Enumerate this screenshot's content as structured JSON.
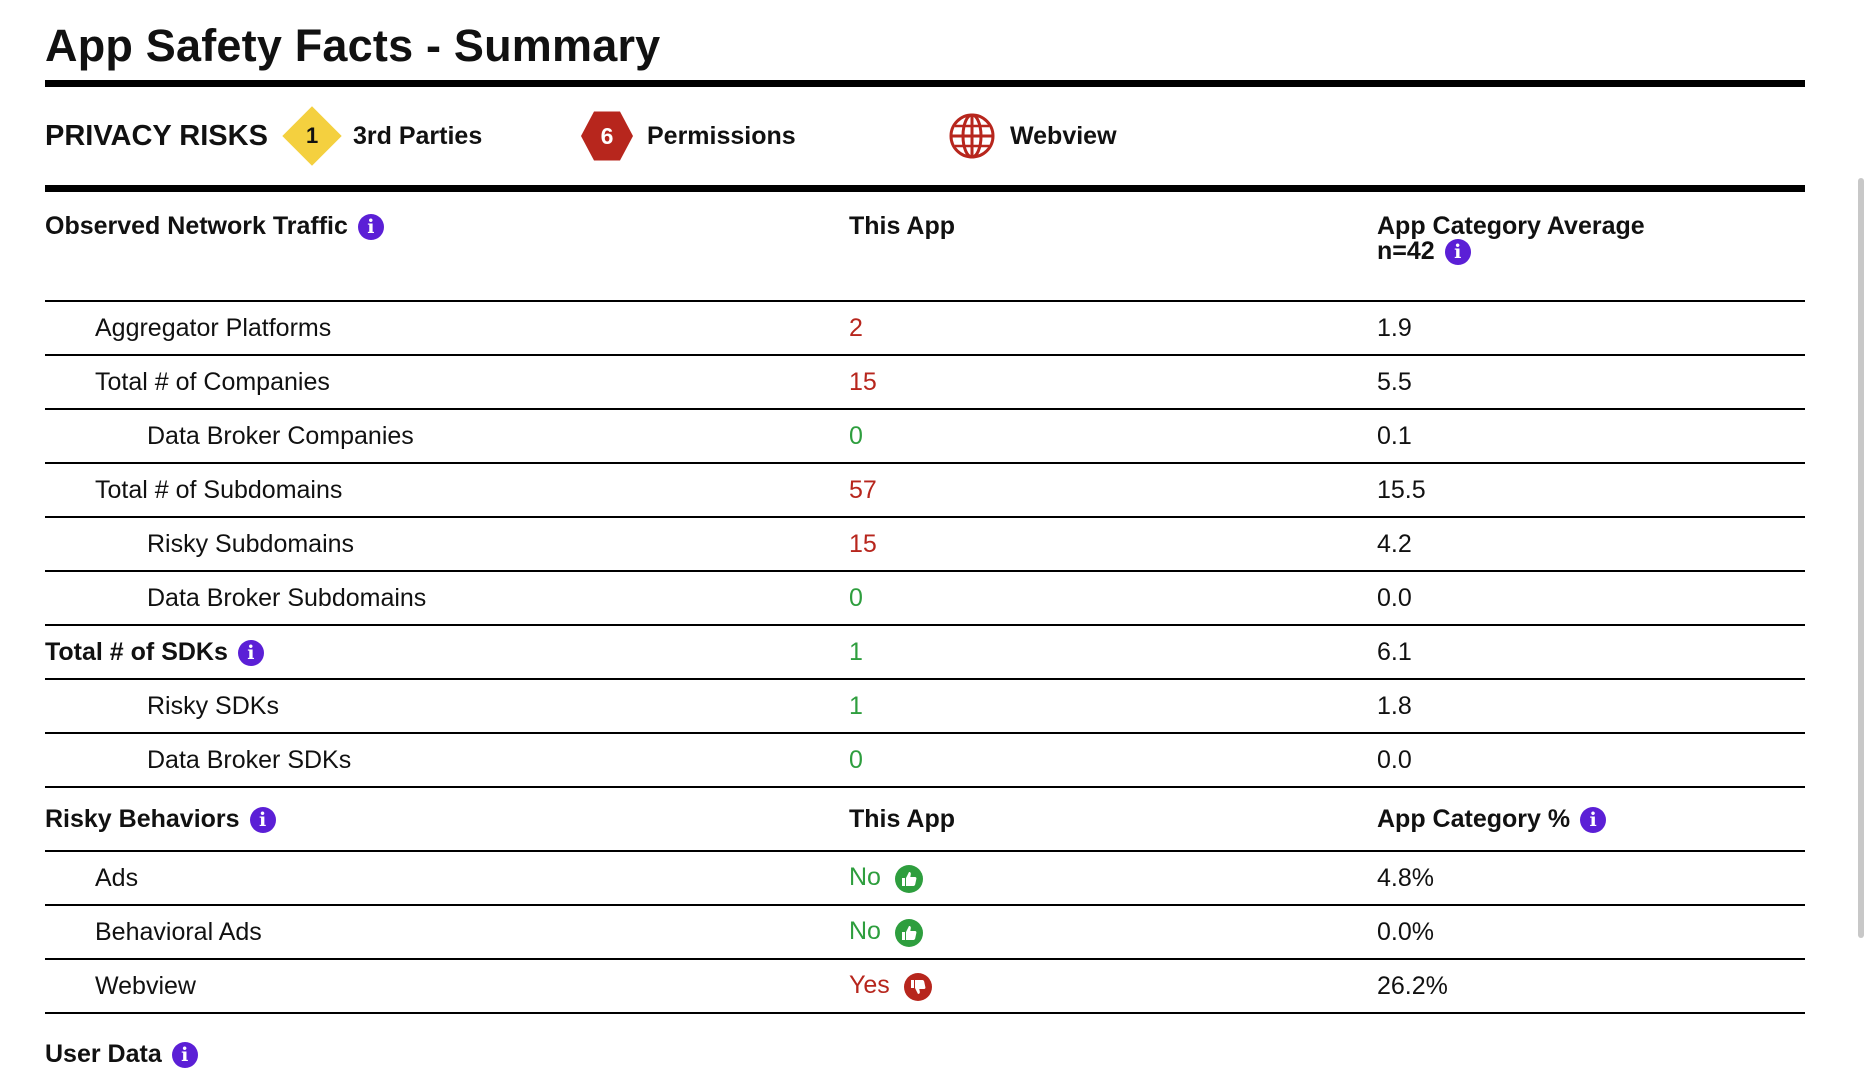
{
  "title": "App Safety Facts - Summary",
  "privacy_risks": {
    "label": "PRIVACY RISKS",
    "items": [
      {
        "badge": "1",
        "label": "3rd Parties",
        "icon": "diamond-warning-icon",
        "color": "#f4d03f"
      },
      {
        "badge": "6",
        "label": "Permissions",
        "icon": "hexagon-badge-icon",
        "color": "#b7261d"
      },
      {
        "badge": "",
        "label": "Webview",
        "icon": "globe-icon",
        "color": "#b7261d"
      }
    ]
  },
  "network": {
    "header": {
      "col1": "Observed Network Traffic",
      "col2": "This App",
      "col3": "App Category Average",
      "col3_sub": "n=42"
    },
    "rows": [
      {
        "label": "Aggregator Platforms",
        "value": "2",
        "avg": "1.9"
      },
      {
        "label": "Total # of Companies",
        "value": "15",
        "avg": "5.5"
      },
      {
        "label": "Data Broker Companies",
        "value": "0",
        "avg": "0.1"
      },
      {
        "label": "Total # of Subdomains",
        "value": "57",
        "avg": "15.5"
      },
      {
        "label": "Risky Subdomains",
        "value": "15",
        "avg": "4.2"
      },
      {
        "label": "Data Broker Subdomains",
        "value": "0",
        "avg": "0.0"
      },
      {
        "label": "Total # of SDKs",
        "value": "1",
        "avg": "6.1"
      },
      {
        "label": "Risky SDKs",
        "value": "1",
        "avg": "1.8"
      },
      {
        "label": "Data Broker SDKs",
        "value": "0",
        "avg": "0.0"
      }
    ]
  },
  "behaviors": {
    "header": {
      "col1": "Risky Behaviors",
      "col2": "This App",
      "col3": "App Category %"
    },
    "rows": [
      {
        "label": "Ads",
        "value": "No",
        "pct": "4.8%"
      },
      {
        "label": "Behavioral Ads",
        "value": "No",
        "pct": "0.0%"
      },
      {
        "label": "Webview",
        "value": "Yes",
        "pct": "26.2%"
      }
    ]
  },
  "user_data": {
    "label": "User Data"
  },
  "info_glyph": "i",
  "colors": {
    "accent": "#5b1fd6",
    "bad": "#b7261d",
    "good": "#2e9e3e",
    "warn": "#f4d03f"
  }
}
